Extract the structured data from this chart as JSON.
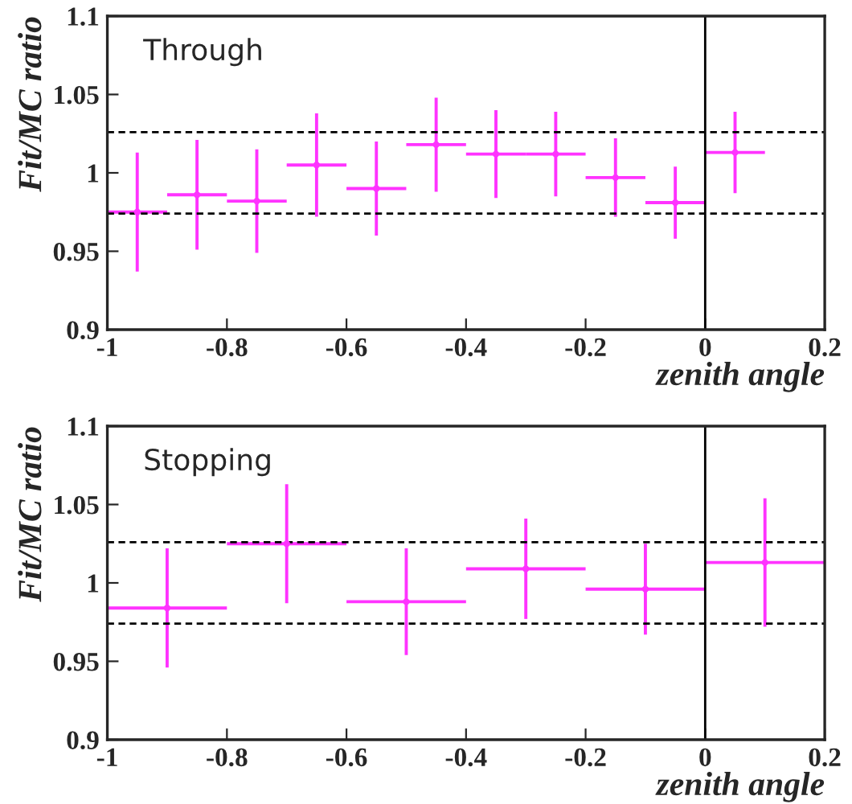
{
  "chart_data": [
    {
      "type": "scatter",
      "xlabel": "zenith angle",
      "ylabel": "Fit/MC ratio",
      "annotations": [
        "Through"
      ],
      "x": [
        -0.95,
        -0.85,
        -0.75,
        -0.65,
        -0.55,
        -0.45,
        -0.35,
        -0.25,
        -0.15,
        -0.05,
        0.05
      ],
      "series": [
        {
          "color": "#ff33ff",
          "values": [
            0.975,
            0.986,
            0.982,
            1.005,
            0.99,
            1.018,
            1.012,
            1.012,
            0.997,
            0.981,
            1.013
          ],
          "errors": [
            0.038,
            0.035,
            0.033,
            0.033,
            0.03,
            0.03,
            0.028,
            0.027,
            0.025,
            0.023,
            0.026
          ],
          "xerrors": [
            0.05,
            0.05,
            0.05,
            0.05,
            0.05,
            0.05,
            0.05,
            0.05,
            0.05,
            0.05,
            0.05
          ]
        }
      ],
      "xlim": [
        -1,
        0.2
      ],
      "xticks": [
        -1,
        -0.8,
        -0.6,
        -0.4,
        -0.2,
        0,
        0.2
      ],
      "ylim": [
        0.9,
        1.1
      ],
      "yticks": [
        0.9,
        0.95,
        1,
        1.05,
        1.1
      ],
      "ref_lines": [
        {
          "axis": "x",
          "value": 0,
          "color": "#000000",
          "line_style": "solid"
        },
        {
          "axis": "y",
          "value": 1.026,
          "color": "#000000",
          "line_style": "dashed"
        },
        {
          "axis": "y",
          "value": 0.974,
          "color": "#000000",
          "line_style": "dashed"
        }
      ],
      "grid": false,
      "legend": false
    },
    {
      "type": "scatter",
      "xlabel": "zenith angle",
      "ylabel": "Fit/MC ratio",
      "annotations": [
        "Stopping"
      ],
      "x": [
        -0.9,
        -0.7,
        -0.5,
        -0.3,
        -0.1,
        0.1
      ],
      "series": [
        {
          "color": "#ff33ff",
          "values": [
            0.984,
            1.025,
            0.988,
            1.009,
            0.996,
            1.013
          ],
          "errors": [
            0.038,
            0.038,
            0.034,
            0.032,
            0.029,
            0.041
          ],
          "xerrors": [
            0.1,
            0.1,
            0.1,
            0.1,
            0.1,
            0.1
          ]
        }
      ],
      "xlim": [
        -1,
        0.2
      ],
      "xticks": [
        -1,
        -0.8,
        -0.6,
        -0.4,
        -0.2,
        0,
        0.2
      ],
      "ylim": [
        0.9,
        1.1
      ],
      "yticks": [
        0.9,
        0.95,
        1,
        1.05,
        1.1
      ],
      "ref_lines": [
        {
          "axis": "x",
          "value": 0,
          "color": "#000000",
          "line_style": "solid"
        },
        {
          "axis": "y",
          "value": 1.026,
          "color": "#000000",
          "line_style": "dashed"
        },
        {
          "axis": "y",
          "value": 0.974,
          "color": "#000000",
          "line_style": "dashed"
        }
      ],
      "grid": false,
      "legend": false
    }
  ]
}
